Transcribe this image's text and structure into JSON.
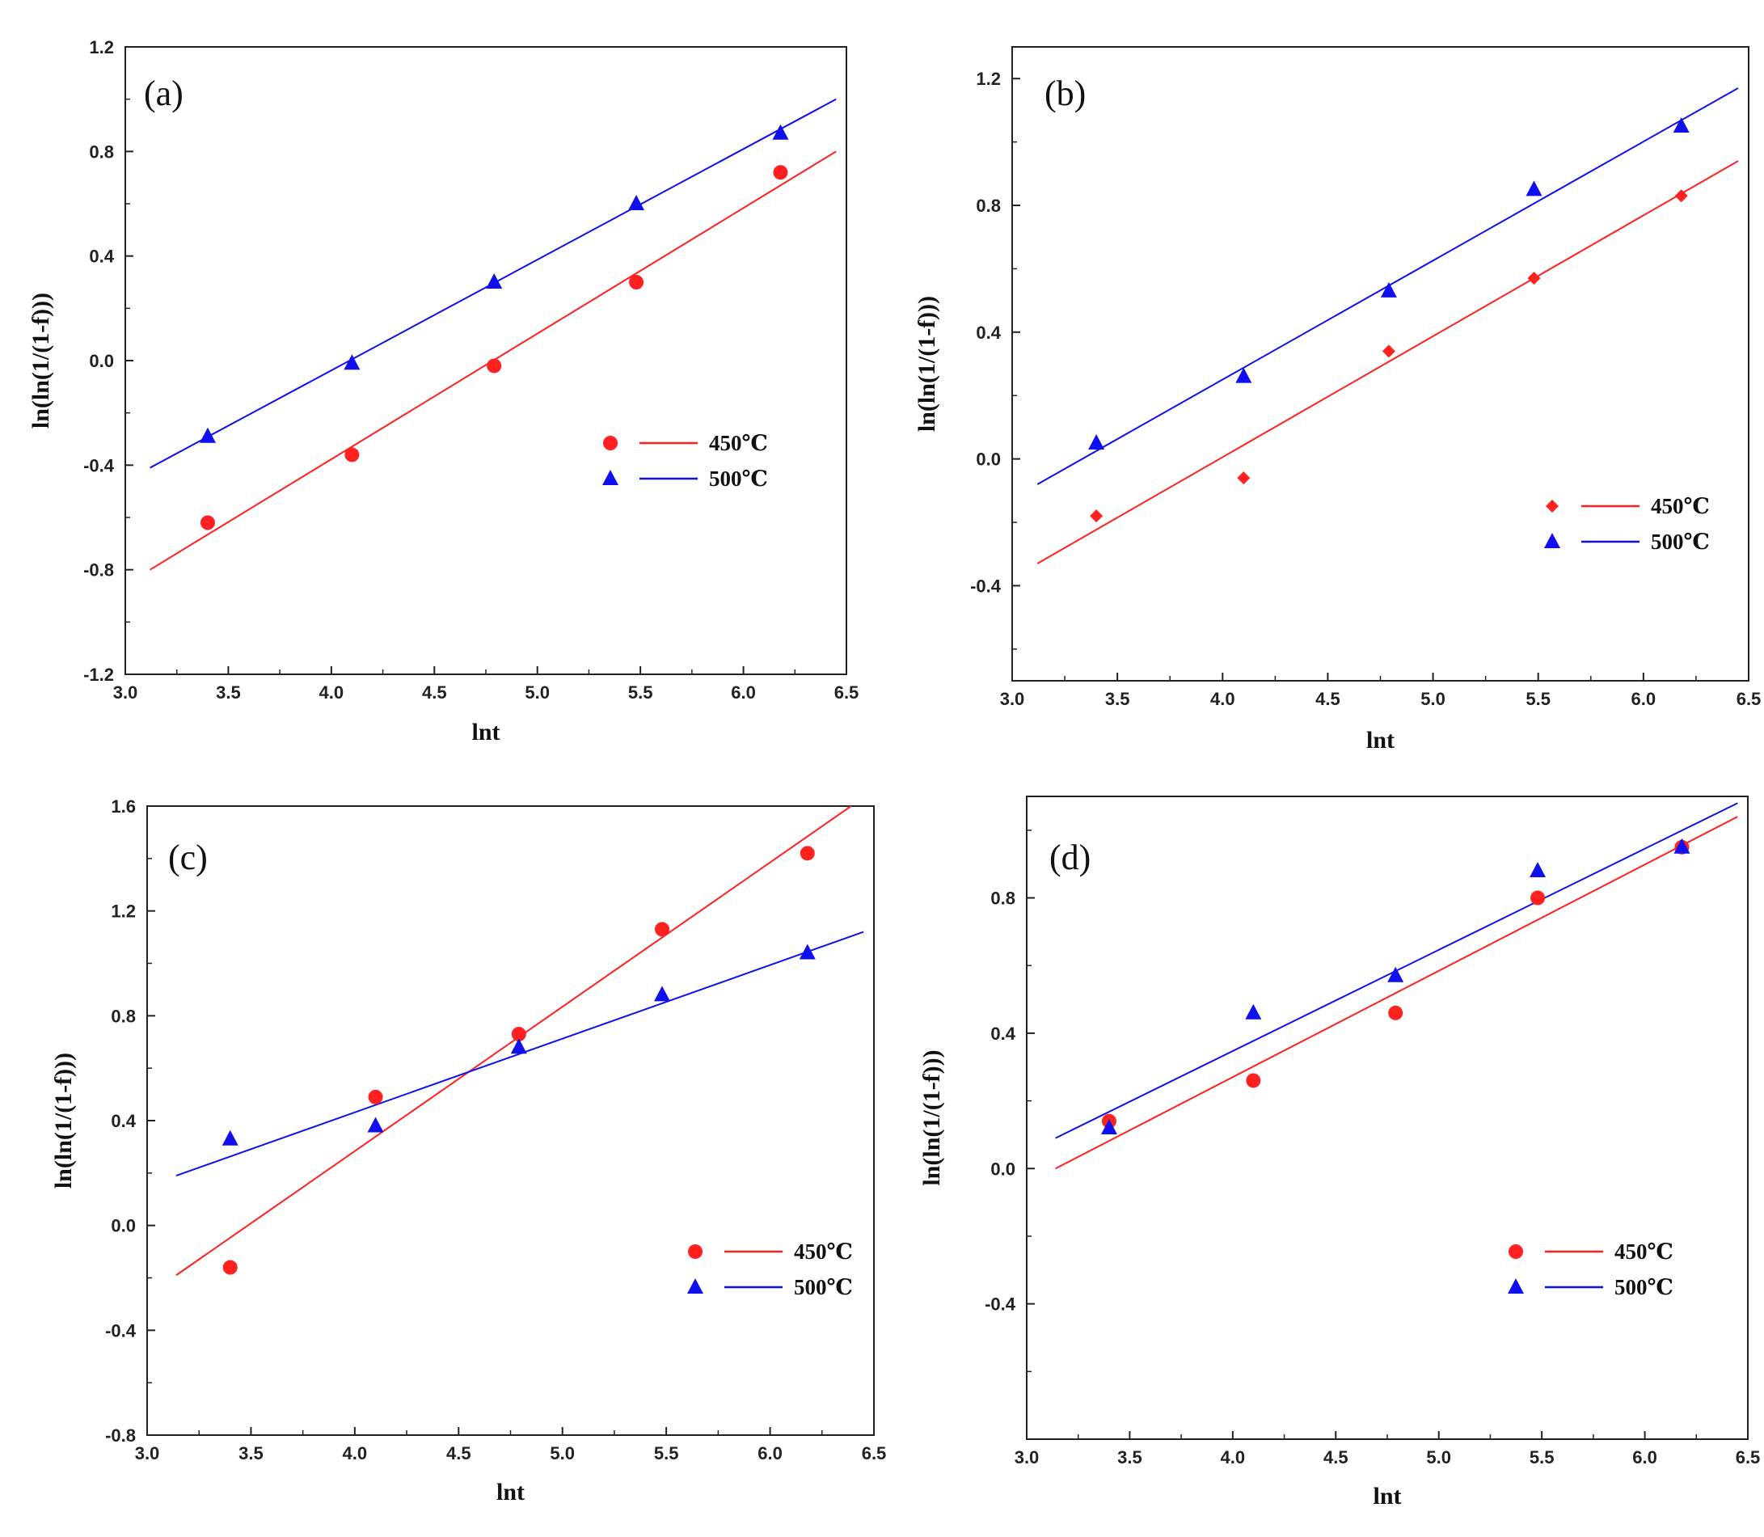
{
  "chart_data": [
    {
      "type": "scatter",
      "panel_label": "(a)",
      "xlabel": "lnt",
      "ylabel": "ln(ln(1/(1-f)))",
      "xlim": [
        3.0,
        6.5
      ],
      "ylim": [
        -1.2,
        1.2
      ],
      "xticks": [
        3.0,
        3.5,
        4.0,
        4.5,
        5.0,
        5.5,
        6.0,
        6.5
      ],
      "xtick_labels": [
        "3.0",
        "3.5",
        "4.0",
        "4.5",
        "5.0",
        "5.5",
        "6.0",
        "6.5"
      ],
      "yticks": [
        -1.2,
        -0.8,
        -0.4,
        0.0,
        0.4,
        0.8,
        1.2
      ],
      "ytick_labels": [
        "-1.2",
        "-0.8",
        "-0.4",
        "0.0",
        "0.4",
        "0.8",
        "1.2"
      ],
      "legend_position": "center-right",
      "series": [
        {
          "name": "450℃",
          "color": "#ff2020",
          "marker": "circle",
          "x": [
            3.4,
            4.1,
            4.79,
            5.48,
            6.18
          ],
          "y": [
            -0.62,
            -0.36,
            -0.02,
            0.3,
            0.72
          ],
          "fit": {
            "x": [
              3.12,
              6.45
            ],
            "y": [
              -0.8,
              0.8
            ]
          }
        },
        {
          "name": "500℃",
          "color": "#1010ee",
          "marker": "triangle",
          "x": [
            3.4,
            4.1,
            4.79,
            5.48,
            6.18
          ],
          "y": [
            -0.29,
            -0.01,
            0.3,
            0.6,
            0.87
          ],
          "fit": {
            "x": [
              3.12,
              6.45
            ],
            "y": [
              -0.41,
              1.0
            ]
          }
        }
      ]
    },
    {
      "type": "scatter",
      "panel_label": "(b)",
      "xlabel": "lnt",
      "ylabel": "ln(ln(1/(1-f)))",
      "xlim": [
        3.0,
        6.5
      ],
      "ylim": [
        -0.7,
        1.3
      ],
      "xticks": [
        3.0,
        3.5,
        4.0,
        4.5,
        5.0,
        5.5,
        6.0,
        6.5
      ],
      "xtick_labels": [
        "3.0",
        "3.5",
        "4.0",
        "4.5",
        "5.0",
        "5.5",
        "6.0",
        "6.5"
      ],
      "yticks": [
        -0.4,
        0.0,
        0.4,
        0.8,
        1.2
      ],
      "ytick_labels": [
        "-0.4",
        "0.0",
        "0.4",
        "0.8",
        "1.2"
      ],
      "legend_position": "lower-right",
      "series": [
        {
          "name": "450℃",
          "color": "#ff2020",
          "marker": "diamond",
          "x": [
            3.4,
            4.1,
            4.79,
            5.48,
            6.18
          ],
          "y": [
            -0.18,
            -0.06,
            0.34,
            0.57,
            0.83
          ],
          "fit": {
            "x": [
              3.12,
              6.45
            ],
            "y": [
              -0.33,
              0.94
            ]
          }
        },
        {
          "name": "500℃",
          "color": "#1010ee",
          "marker": "triangle",
          "x": [
            3.4,
            4.1,
            4.79,
            5.48,
            6.18
          ],
          "y": [
            0.05,
            0.26,
            0.53,
            0.85,
            1.05
          ],
          "fit": {
            "x": [
              3.12,
              6.45
            ],
            "y": [
              -0.08,
              1.17
            ]
          }
        }
      ]
    },
    {
      "type": "scatter",
      "panel_label": "(c)",
      "xlabel": "lnt",
      "ylabel": "ln(ln(1/(1-f)))",
      "xlim": [
        3.0,
        6.5
      ],
      "ylim": [
        -0.8,
        1.6
      ],
      "xticks": [
        3.0,
        3.5,
        4.0,
        4.5,
        5.0,
        5.5,
        6.0,
        6.5
      ],
      "xtick_labels": [
        "3.0",
        "3.5",
        "4.0",
        "4.5",
        "5.0",
        "5.5",
        "6.0",
        "6.5"
      ],
      "yticks": [
        -0.8,
        -0.4,
        0.0,
        0.4,
        0.8,
        1.2,
        1.6
      ],
      "ytick_labels": [
        "-0.8",
        "-0.4",
        "0.0",
        "0.4",
        "0.8",
        "1.2",
        "1.6"
      ],
      "legend_position": "lower-right",
      "series": [
        {
          "name": "450℃",
          "color": "#ff2020",
          "marker": "circle",
          "x": [
            3.4,
            4.1,
            4.79,
            5.48,
            6.18
          ],
          "y": [
            -0.16,
            0.49,
            0.73,
            1.13,
            1.42
          ],
          "fit": {
            "x": [
              3.14,
              6.39
            ],
            "y": [
              -0.19,
              1.6
            ]
          }
        },
        {
          "name": "500℃",
          "color": "#1010ee",
          "marker": "triangle",
          "x": [
            3.4,
            4.1,
            4.79,
            5.48,
            6.18
          ],
          "y": [
            0.33,
            0.38,
            0.68,
            0.88,
            1.04
          ],
          "fit": {
            "x": [
              3.14,
              6.45
            ],
            "y": [
              0.19,
              1.12
            ]
          }
        }
      ]
    },
    {
      "type": "scatter",
      "panel_label": "(d)",
      "xlabel": "lnt",
      "ylabel": "ln(ln(1/(1-f)))",
      "xlim": [
        3.0,
        6.5
      ],
      "ylim": [
        -0.8,
        1.1
      ],
      "xticks": [
        3.0,
        3.5,
        4.0,
        4.5,
        5.0,
        5.5,
        6.0,
        6.5
      ],
      "xtick_labels": [
        "3.0",
        "3.5",
        "4.0",
        "4.5",
        "5.0",
        "5.5",
        "6.0",
        "6.5"
      ],
      "yticks": [
        -0.4,
        0.0,
        0.4,
        0.8
      ],
      "ytick_labels": [
        "-0.4",
        "0.0",
        "0.4",
        "0.8"
      ],
      "legend_position": "lower-right",
      "series": [
        {
          "name": "450℃",
          "color": "#ff2020",
          "marker": "circle",
          "x": [
            3.4,
            4.1,
            4.79,
            5.48,
            6.18
          ],
          "y": [
            0.14,
            0.26,
            0.46,
            0.8,
            0.95
          ],
          "fit": {
            "x": [
              3.14,
              6.45
            ],
            "y": [
              0.0,
              1.04
            ]
          }
        },
        {
          "name": "500℃",
          "color": "#1010ee",
          "marker": "triangle",
          "x": [
            3.4,
            4.1,
            4.79,
            5.48,
            6.18
          ],
          "y": [
            0.12,
            0.46,
            0.57,
            0.88,
            0.95
          ],
          "fit": {
            "x": [
              3.14,
              6.45
            ],
            "y": [
              0.09,
              1.08
            ]
          }
        }
      ]
    }
  ]
}
